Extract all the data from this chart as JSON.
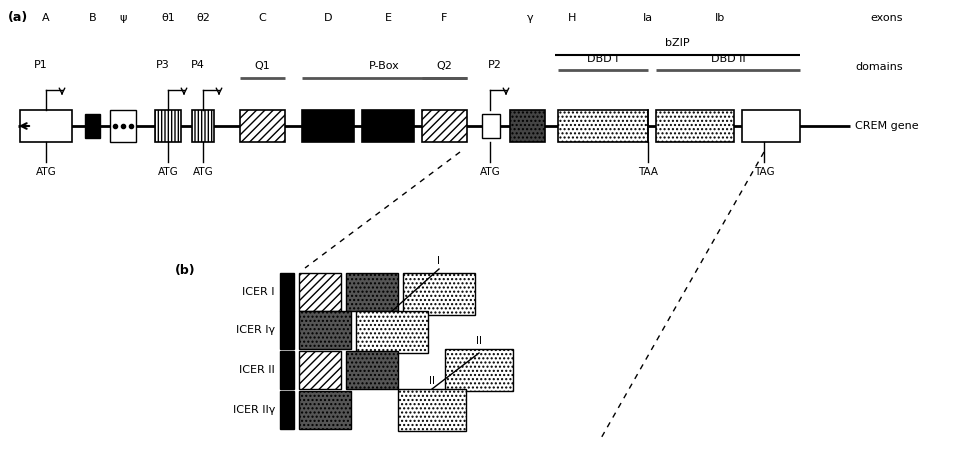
{
  "exons": [
    "A",
    "B",
    "ψ",
    "θ1",
    "θ2",
    "C",
    "D",
    "E",
    "F",
    "γ",
    "H",
    "Ia",
    "Ib"
  ],
  "icer_labels": [
    "ICER I",
    "ICER Iγ",
    "ICER II",
    "ICER IIγ"
  ]
}
